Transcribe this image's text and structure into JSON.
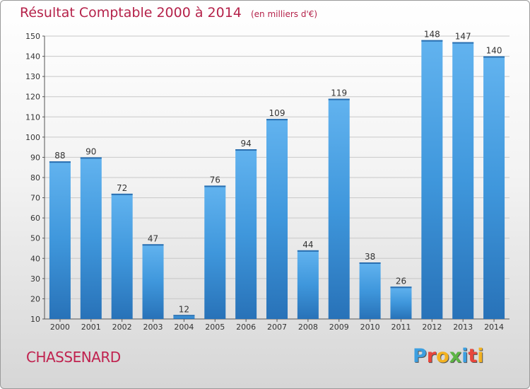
{
  "header": {
    "title": "Résultat Comptable 2000 à 2014",
    "unit": "(en milliers d'€)"
  },
  "footer": {
    "commune": "CHASSENARD",
    "logo": {
      "letters": [
        "P",
        "r",
        "o",
        "x",
        "i",
        "t",
        "i"
      ],
      "colors": [
        "#3d9fe0",
        "#e8463c",
        "#f3b221",
        "#5db544",
        "#3d9fe0",
        "#e8463c",
        "#f3b221"
      ]
    }
  },
  "colors": {
    "bar": "#3f97dc",
    "bar_light": "#62b3ef",
    "bar_dark": "#2872b8",
    "title": "#b5224a",
    "axis": "#555555"
  },
  "chart_data": {
    "type": "bar",
    "categories": [
      "2000",
      "2001",
      "2002",
      "2003",
      "2004",
      "2005",
      "2006",
      "2007",
      "2008",
      "2009",
      "2010",
      "2011",
      "2012",
      "2013",
      "2014"
    ],
    "values": [
      88,
      90,
      72,
      47,
      12,
      76,
      94,
      109,
      44,
      119,
      38,
      26,
      148,
      147,
      140
    ],
    "title": "Résultat Comptable 2000 à 2014",
    "ylim": [
      10,
      150
    ],
    "yticks": [
      10,
      20,
      30,
      40,
      50,
      60,
      70,
      80,
      90,
      100,
      110,
      120,
      130,
      140,
      150
    ],
    "grid": true,
    "data_labels": true
  }
}
